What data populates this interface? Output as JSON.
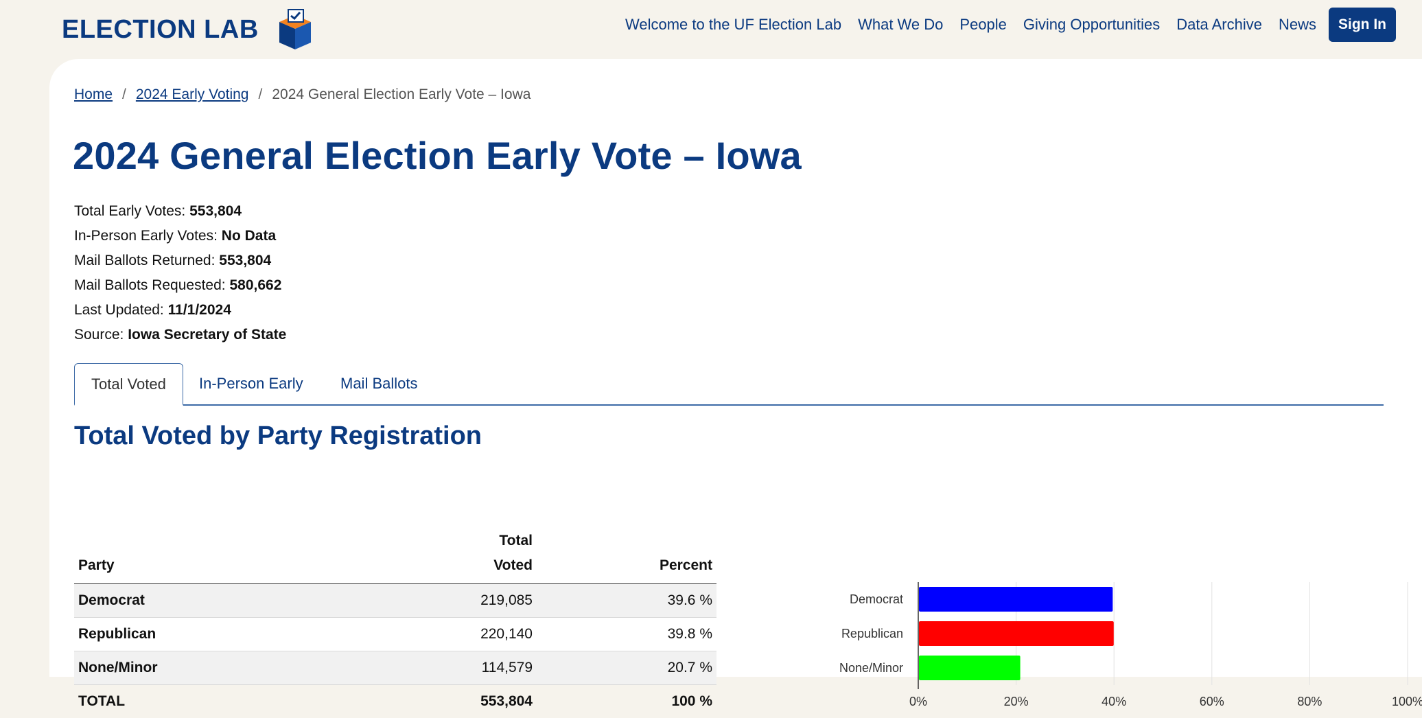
{
  "header": {
    "logo_text": "ELECTION LAB",
    "nav": [
      "Welcome to the UF Election Lab",
      "What We Do",
      "People",
      "Giving Opportunities",
      "Data Archive",
      "News"
    ],
    "signin_label": "Sign In"
  },
  "breadcrumb": {
    "home": "Home",
    "section": "2024 Early Voting",
    "current": "2024 General Election Early Vote – Iowa",
    "separator": "/"
  },
  "page": {
    "title": "2024 General Election Early Vote – Iowa"
  },
  "stats": [
    {
      "label": "Total Early Votes:",
      "value": "553,804"
    },
    {
      "label": "In-Person Early Votes:",
      "value": "No Data"
    },
    {
      "label": "Mail Ballots Returned:",
      "value": "553,804"
    },
    {
      "label": "Mail Ballots Requested:",
      "value": "580,662"
    },
    {
      "label": "Last Updated:",
      "value": "11/1/2024"
    },
    {
      "label": "Source:",
      "value": "Iowa Secretary of State"
    }
  ],
  "tabs": [
    "Total Voted",
    "In-Person Early",
    "Mail Ballots"
  ],
  "section": {
    "title": "Total Voted by Party Registration"
  },
  "table": {
    "headers": {
      "party": "Party",
      "total_line1": "Total",
      "total_line2": "Voted",
      "percent": "Percent"
    },
    "rows": [
      {
        "party": "Democrat",
        "total": "219,085",
        "percent": "39.6 %"
      },
      {
        "party": "Republican",
        "total": "220,140",
        "percent": "39.8 %"
      },
      {
        "party": "None/Minor",
        "total": "114,579",
        "percent": "20.7 %"
      }
    ],
    "total_row": {
      "party": "TOTAL",
      "total": "553,804",
      "percent": "100 %"
    }
  },
  "chart_data": {
    "type": "bar",
    "orientation": "horizontal",
    "categories": [
      "Democrat",
      "Republican",
      "None/Minor"
    ],
    "values": [
      39.6,
      39.8,
      20.7
    ],
    "colors": [
      "#0000ff",
      "#ff0000",
      "#00ff00"
    ],
    "xlim": [
      0,
      100
    ],
    "xticks": [
      "0%",
      "20%",
      "40%",
      "60%",
      "80%",
      "100%"
    ],
    "grid": true
  },
  "colors": {
    "brand": "#0b3a80",
    "background": "#f6f3ec"
  }
}
